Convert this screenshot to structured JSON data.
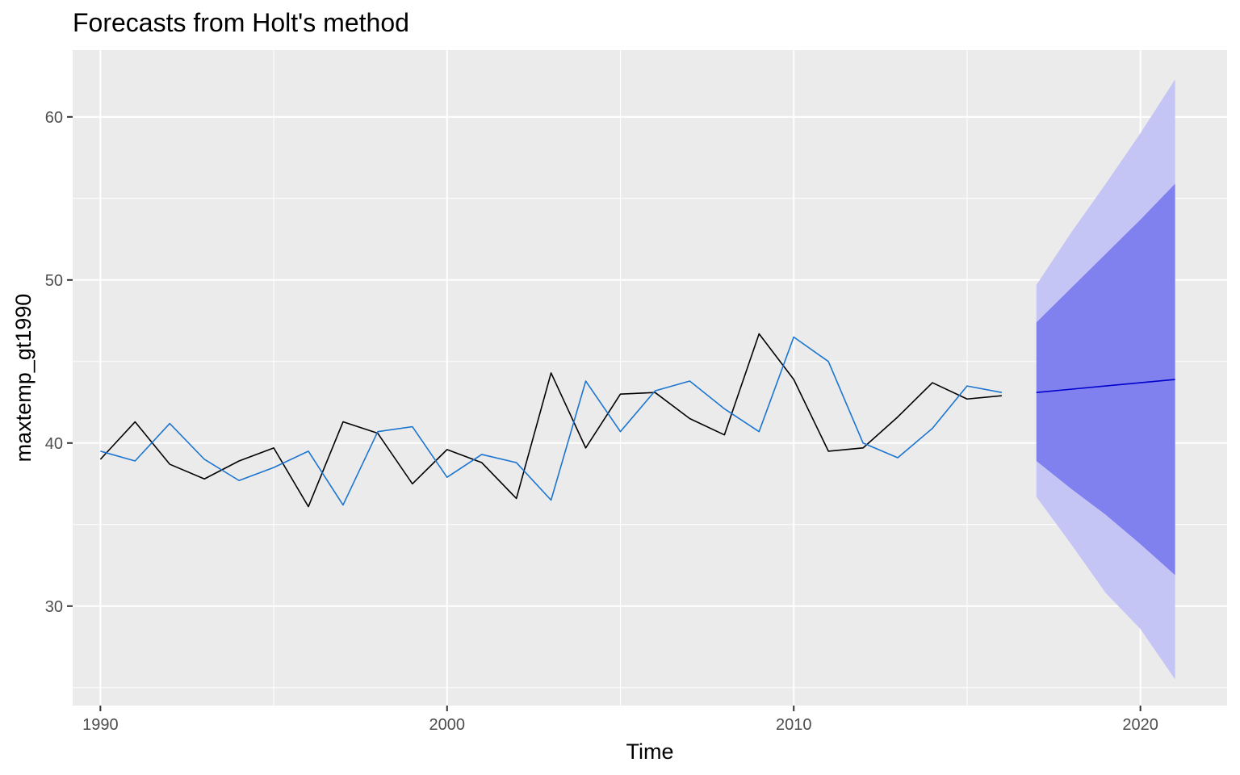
{
  "chart_data": {
    "type": "line",
    "title": "Forecasts from Holt's method",
    "xlabel": "Time",
    "ylabel": "maxtemp_gt1990",
    "xlim": [
      1989.2,
      2022.5
    ],
    "ylim": [
      23.9,
      64.1
    ],
    "x_ticks": [
      1990,
      2000,
      2010,
      2020
    ],
    "x_tick_labels": [
      "1990",
      "2000",
      "2010",
      "2020"
    ],
    "y_ticks": [
      30,
      40,
      50,
      60
    ],
    "y_tick_labels": [
      "30",
      "40",
      "50",
      "60"
    ],
    "grid": true,
    "legend": "none",
    "series": [
      {
        "color": "#000000",
        "points": [
          [
            1990,
            39.0
          ],
          [
            1991,
            41.3
          ],
          [
            1992,
            38.7
          ],
          [
            1993,
            37.8
          ],
          [
            1994,
            38.9
          ],
          [
            1995,
            39.7
          ],
          [
            1996,
            36.1
          ],
          [
            1997,
            41.3
          ],
          [
            1998,
            40.6
          ],
          [
            1999,
            37.5
          ],
          [
            2000,
            39.6
          ],
          [
            2001,
            38.8
          ],
          [
            2002,
            36.6
          ],
          [
            2003,
            44.3
          ],
          [
            2004,
            39.7
          ],
          [
            2005,
            43.0
          ],
          [
            2006,
            43.1
          ],
          [
            2007,
            41.5
          ],
          [
            2008,
            40.5
          ],
          [
            2009,
            46.7
          ],
          [
            2010,
            43.9
          ],
          [
            2011,
            39.5
          ],
          [
            2012,
            39.7
          ],
          [
            2013,
            41.6
          ],
          [
            2014,
            43.7
          ],
          [
            2015,
            42.7
          ],
          [
            2016,
            42.9
          ]
        ]
      },
      {
        "color": "#1b75d0",
        "points": [
          [
            1990,
            39.5
          ],
          [
            1991,
            38.9
          ],
          [
            1992,
            41.2
          ],
          [
            1993,
            39.0
          ],
          [
            1994,
            37.7
          ],
          [
            1995,
            38.5
          ],
          [
            1996,
            39.5
          ],
          [
            1997,
            36.2
          ],
          [
            1998,
            40.7
          ],
          [
            1999,
            41.0
          ],
          [
            2000,
            37.9
          ],
          [
            2001,
            39.3
          ],
          [
            2002,
            38.8
          ],
          [
            2003,
            36.5
          ],
          [
            2004,
            43.8
          ],
          [
            2005,
            40.7
          ],
          [
            2006,
            43.2
          ],
          [
            2007,
            43.8
          ],
          [
            2008,
            42.1
          ],
          [
            2009,
            40.7
          ],
          [
            2010,
            46.5
          ],
          [
            2011,
            45.0
          ],
          [
            2012,
            40.0
          ],
          [
            2013,
            39.1
          ],
          [
            2014,
            40.9
          ],
          [
            2015,
            43.5
          ],
          [
            2016,
            43.1
          ]
        ]
      }
    ],
    "forecast": {
      "line_color": "#0000cc",
      "band80_color": "#8080ee",
      "band95_color": "#c5c5f5",
      "x": [
        2017,
        2018,
        2019,
        2020,
        2021
      ],
      "mean": [
        43.1,
        43.3,
        43.5,
        43.7,
        43.9
      ],
      "lo80": [
        38.9,
        37.2,
        35.6,
        33.8,
        31.9
      ],
      "hi80": [
        47.4,
        49.5,
        51.6,
        53.7,
        55.9
      ],
      "lo95": [
        36.7,
        33.8,
        30.8,
        28.6,
        25.5
      ],
      "hi95": [
        49.7,
        52.9,
        55.9,
        59.0,
        62.3
      ]
    }
  }
}
